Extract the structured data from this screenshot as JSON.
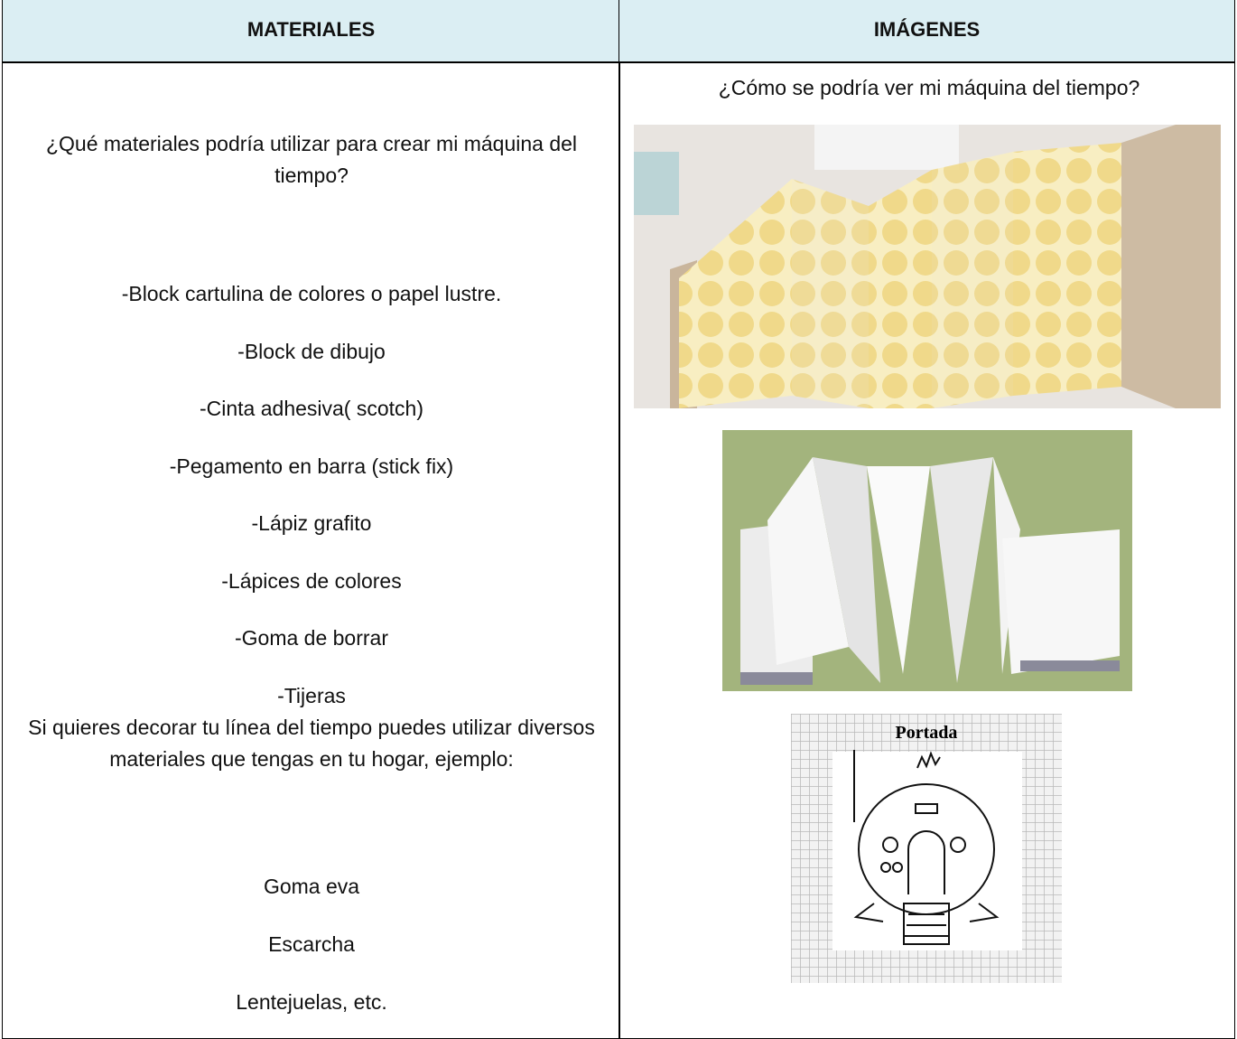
{
  "header": {
    "columns": [
      "MATERIALES",
      "IMÁGENES"
    ]
  },
  "left": {
    "question": "¿Qué materiales podría utilizar para crear mi máquina del tiempo?",
    "items": [
      "-Block cartulina de colores o papel lustre.",
      "-Block de dibujo",
      "-Cinta adhesiva( scotch)",
      "-Pegamento en barra (stick fix)",
      "-Lápiz grafito",
      "-Lápices de colores",
      "-Goma de borrar",
      "-Tijeras"
    ],
    "note": "Si quieres  decorar tu línea del tiempo puedes utilizar diversos materiales que tengas en tu hogar, ejemplo:",
    "extras": [
      "Goma eva",
      "Escarcha",
      "Lentejuelas, etc."
    ]
  },
  "right": {
    "question": "¿Cómo se podría ver mi máquina del tiempo?",
    "cover_label": "Portada"
  }
}
